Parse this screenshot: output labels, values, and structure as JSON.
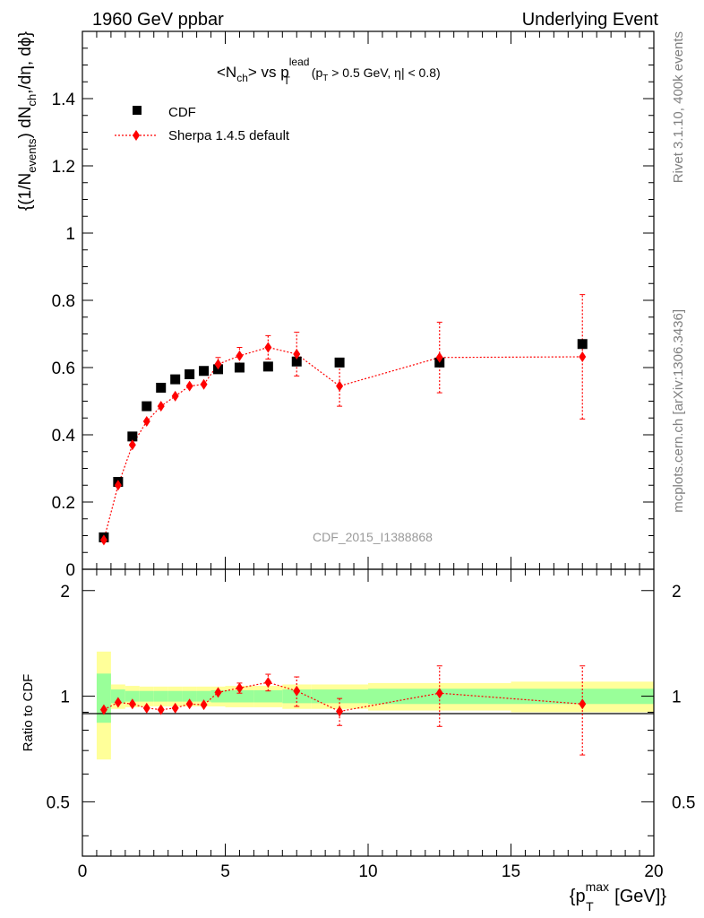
{
  "header": {
    "energy": "1960 GeV ppbar",
    "process": "Underlying Event"
  },
  "side_labels": {
    "rivet": "Rivet 3.1.10,  400k events",
    "mcplots": "mcplots.cern.ch [arXiv:1306.3436]"
  },
  "chart_data": [
    {
      "type": "scatter",
      "panel": "main",
      "title": {
        "prefix": "<N",
        "prefix_sub": "ch",
        "middle": "> vs p",
        "middle_sup": "lead",
        "middle_sub": "T",
        "cut1": "(p",
        "cut1_sub": "T",
        "cut2": " > 0.5 GeV, ",
        "eta": "η",
        "cut3": "| < 0.8)"
      },
      "ylabel": {
        "p1": "{(1/N",
        "p1_sub": "events",
        "p2": ") dN",
        "p2_sub": "ch",
        "p3": ",/dη, dϕ}"
      },
      "watermark": "CDF_2015_I1388868",
      "xlim": [
        0,
        20
      ],
      "ylim": [
        0,
        1.6
      ],
      "y_ticks": [
        0,
        0.2,
        0.4,
        0.6,
        0.8,
        1,
        1.2,
        1.4
      ],
      "y_tick_labels": [
        "0",
        "0.2",
        "0.4",
        "0.6",
        "0.8",
        "1",
        "1.2",
        "1.4"
      ],
      "legend": {
        "placement": "top-left"
      },
      "series": [
        {
          "name": "CDF",
          "marker": "square",
          "color": "#000000",
          "x": [
            0.75,
            1.25,
            1.75,
            2.25,
            2.75,
            3.25,
            3.75,
            4.25,
            4.75,
            5.5,
            6.5,
            7.5,
            9.0,
            12.5,
            17.5
          ],
          "y": [
            0.095,
            0.26,
            0.395,
            0.485,
            0.54,
            0.565,
            0.58,
            0.59,
            0.595,
            0.6,
            0.603,
            0.618,
            0.615,
            0.615,
            0.67
          ]
        },
        {
          "name": "Sherpa 1.4.5 default",
          "marker": "diamond",
          "color": "#ff0000",
          "line": "dotted",
          "x": [
            0.75,
            1.25,
            1.75,
            2.25,
            2.75,
            3.25,
            3.75,
            4.25,
            4.75,
            5.5,
            6.5,
            7.5,
            9.0,
            12.5,
            17.5
          ],
          "y": [
            0.087,
            0.25,
            0.37,
            0.44,
            0.485,
            0.515,
            0.545,
            0.55,
            0.61,
            0.635,
            0.66,
            0.64,
            0.545,
            0.63,
            0.632
          ],
          "yerr": [
            0.0,
            0.0,
            0.0,
            0.0,
            0.0,
            0.0,
            0.0,
            0.0,
            0.02,
            0.025,
            0.035,
            0.065,
            0.06,
            0.105,
            0.185
          ]
        }
      ]
    },
    {
      "type": "scatter",
      "panel": "ratio",
      "ylabel": "Ratio to CDF",
      "xlabel": {
        "p1": "{p",
        "p1_sub": "T",
        "p1_sup": "max",
        "p2": " [GeV]}"
      },
      "xlim": [
        0,
        20
      ],
      "ylim": [
        0.35,
        2.3
      ],
      "log_y": true,
      "x_ticks": [
        0,
        5,
        10,
        15,
        20
      ],
      "x_tick_labels": [
        "0",
        "5",
        "10",
        "15",
        "20"
      ],
      "y_ticks": [
        0.5,
        1,
        2
      ],
      "y_tick_labels": [
        "0.5",
        "1",
        "2"
      ],
      "bands": {
        "edges": [
          0.5,
          1.0,
          1.5,
          2.0,
          2.5,
          3.0,
          3.5,
          4.0,
          4.5,
          5.0,
          6.0,
          7.0,
          8.0,
          10.0,
          15.0,
          20.0
        ],
        "inner_color": "#99ff99",
        "outer_color": "#ffff99",
        "inner_err": [
          0.16,
          0.045,
          0.035,
          0.035,
          0.035,
          0.035,
          0.035,
          0.035,
          0.04,
          0.04,
          0.04,
          0.045,
          0.045,
          0.05,
          0.05
        ],
        "outer_err": [
          0.34,
          0.08,
          0.07,
          0.065,
          0.065,
          0.065,
          0.065,
          0.065,
          0.065,
          0.07,
          0.07,
          0.08,
          0.08,
          0.09,
          0.1
        ]
      },
      "series": [
        {
          "name": "Sherpa 1.4.5 default",
          "marker": "diamond",
          "color": "#ff0000",
          "line": "dotted",
          "x": [
            0.75,
            1.25,
            1.75,
            2.25,
            2.75,
            3.25,
            3.75,
            4.25,
            4.75,
            5.5,
            6.5,
            7.5,
            9.0,
            12.5,
            17.5
          ],
          "y": [
            0.915,
            0.96,
            0.95,
            0.925,
            0.915,
            0.925,
            0.95,
            0.945,
            1.025,
            1.055,
            1.095,
            1.035,
            0.905,
            1.02,
            0.95
          ],
          "yerr": [
            0.0,
            0.0,
            0.0,
            0.0,
            0.0,
            0.0,
            0.0,
            0.0,
            0.0,
            0.035,
            0.06,
            0.1,
            0.08,
            0.2,
            0.27
          ]
        }
      ]
    }
  ]
}
